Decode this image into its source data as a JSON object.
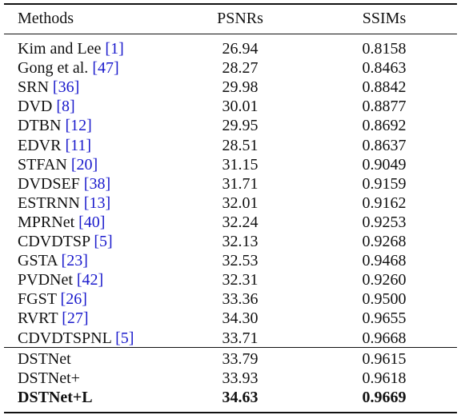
{
  "table": {
    "header": [
      "Methods",
      "PSNRs",
      "SSIMs"
    ],
    "rows": [
      {
        "name": "Kim and Lee",
        "ref": "[1]",
        "psnr": "26.94",
        "ssim": "0.8158"
      },
      {
        "name": "Gong et al.",
        "ref": "[47]",
        "psnr": "28.27",
        "ssim": "0.8463"
      },
      {
        "name": "SRN",
        "ref": "[36]",
        "psnr": "29.98",
        "ssim": "0.8842"
      },
      {
        "name": "DVD",
        "ref": "[8]",
        "psnr": "30.01",
        "ssim": "0.8877"
      },
      {
        "name": "DTBN",
        "ref": "[12]",
        "psnr": "29.95",
        "ssim": "0.8692"
      },
      {
        "name": "EDVR",
        "ref": "[11]",
        "psnr": "28.51",
        "ssim": "0.8637"
      },
      {
        "name": "STFAN",
        "ref": "[20]",
        "psnr": "31.15",
        "ssim": "0.9049"
      },
      {
        "name": "DVDSEF",
        "ref": "[38]",
        "psnr": "31.71",
        "ssim": "0.9159"
      },
      {
        "name": "ESTRNN",
        "ref": "[13]",
        "psnr": "32.01",
        "ssim": "0.9162"
      },
      {
        "name": "MPRNet",
        "ref": "[40]",
        "psnr": "32.24",
        "ssim": "0.9253"
      },
      {
        "name": "CDVDTSP",
        "ref": "[5]",
        "psnr": "32.13",
        "ssim": "0.9268"
      },
      {
        "name": "GSTA",
        "ref": "[23]",
        "psnr": "32.53",
        "ssim": "0.9468"
      },
      {
        "name": "PVDNet",
        "ref": "[42]",
        "psnr": "32.31",
        "ssim": "0.9260"
      },
      {
        "name": "FGST",
        "ref": "[26]",
        "psnr": "33.36",
        "ssim": "0.9500"
      },
      {
        "name": "RVRT",
        "ref": "[27]",
        "psnr": "34.30",
        "ssim": "0.9655"
      },
      {
        "name": "CDVDTSPNL",
        "ref": "[5]",
        "psnr": "33.71",
        "ssim": "0.9668"
      }
    ],
    "proposed_rows": [
      {
        "name": "DSTNet",
        "psnr": "33.79",
        "ssim": "0.9615"
      },
      {
        "name": "DSTNet+",
        "psnr": "33.93",
        "ssim": "0.9618"
      },
      {
        "name": "DSTNet+L",
        "psnr": "34.63",
        "ssim": "0.9669",
        "bold": true
      }
    ]
  }
}
